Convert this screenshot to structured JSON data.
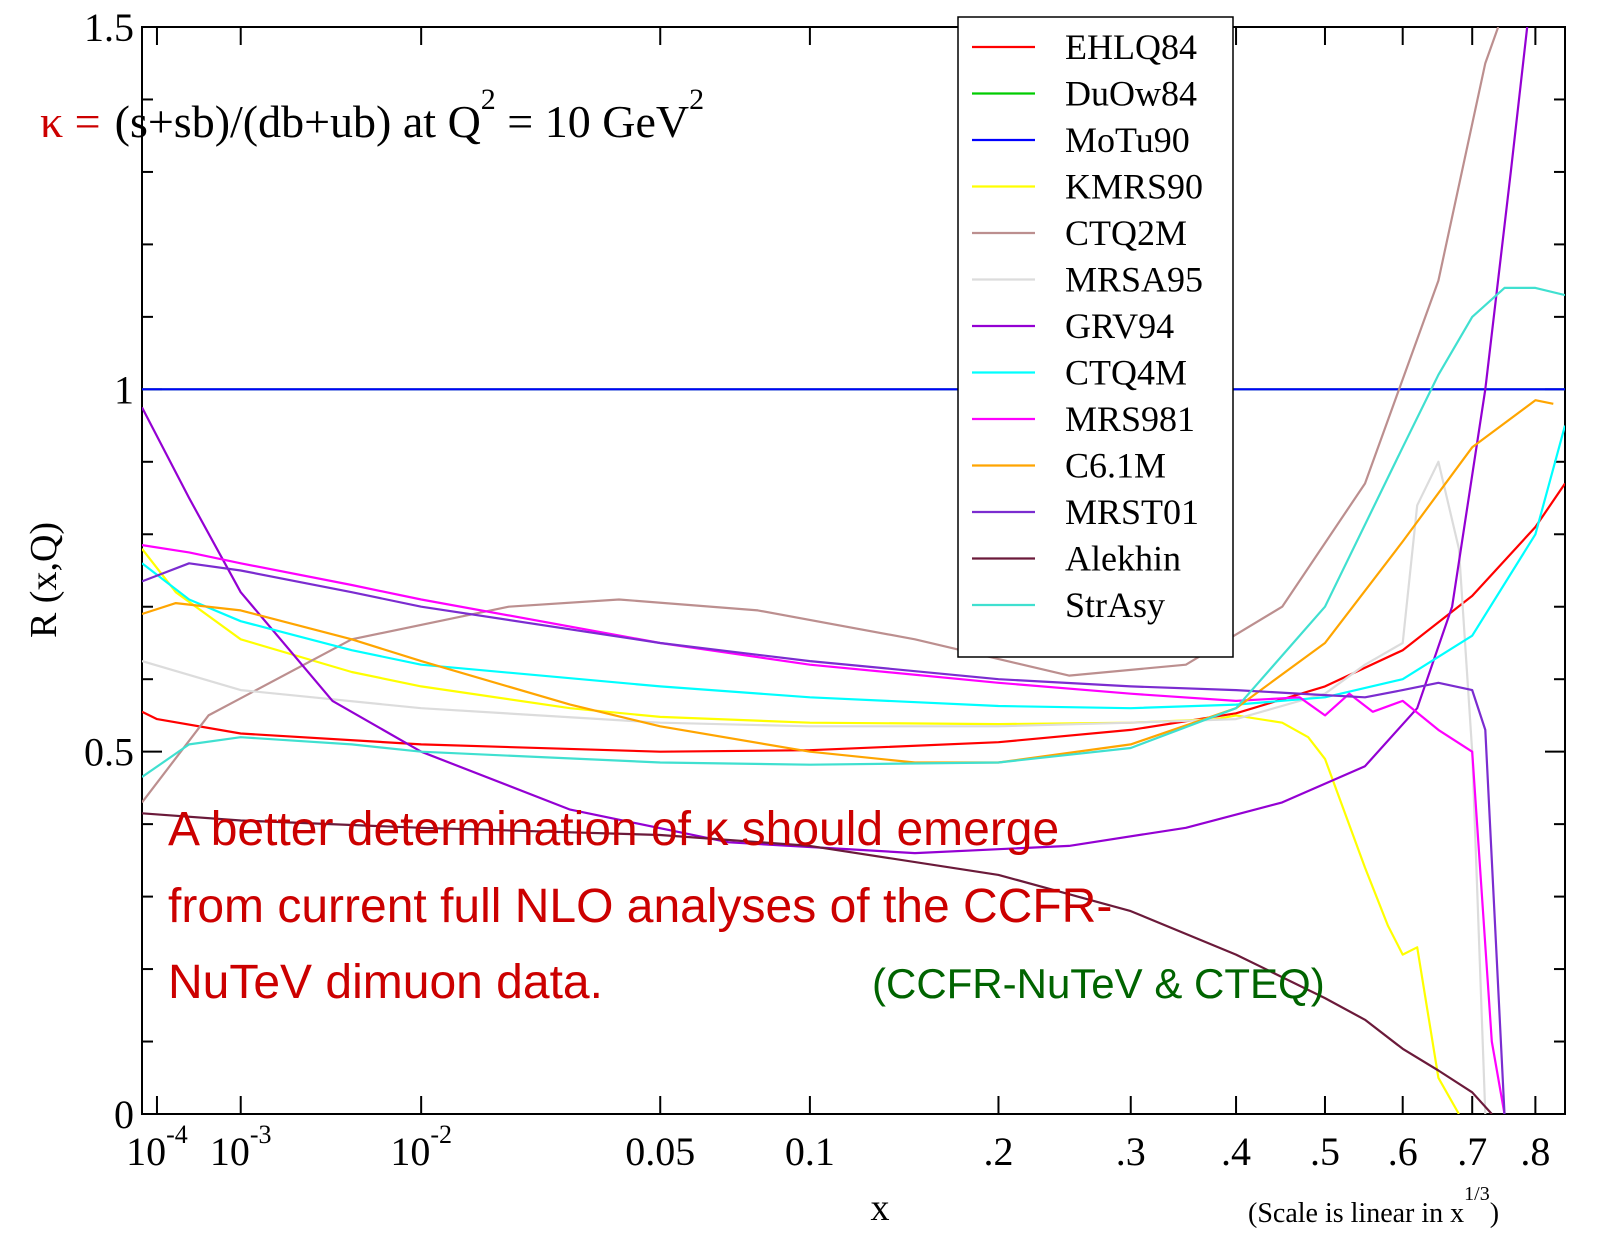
{
  "chart_data": {
    "type": "line",
    "ylabel": "R (x,Q)",
    "xlabel": "x",
    "scale_note_main": "(Scale is linear in x",
    "scale_note_exp": "1/3",
    "scale_note_close": ")",
    "xscale": "linear in x^(1/3)",
    "xlim": [
      5e-05,
      0.85
    ],
    "ylim": [
      0,
      1.5
    ],
    "grid": false,
    "legend_position": "top-right",
    "y_ticks": [
      {
        "value": 0,
        "label": "0"
      },
      {
        "value": 0.5,
        "label": "0.5"
      },
      {
        "value": 1,
        "label": "1"
      },
      {
        "value": 1.5,
        "label": "1.5"
      }
    ],
    "y_minor_step": 0.1,
    "x_ticks": [
      {
        "value": 0.0001,
        "base": "10",
        "exp": "-4"
      },
      {
        "value": 0.001,
        "base": "10",
        "exp": "-3"
      },
      {
        "value": 0.01,
        "base": "10",
        "exp": "-2"
      },
      {
        "value": 0.05,
        "label": "0.05"
      },
      {
        "value": 0.1,
        "label": "0.1"
      },
      {
        "value": 0.2,
        "label": ".2"
      },
      {
        "value": 0.3,
        "label": ".3"
      },
      {
        "value": 0.4,
        "label": ".4"
      },
      {
        "value": 0.5,
        "label": ".5"
      },
      {
        "value": 0.6,
        "label": ".6"
      },
      {
        "value": 0.7,
        "label": ".7"
      },
      {
        "value": 0.8,
        "label": ".8"
      }
    ],
    "title": {
      "kappa": "κ =",
      "main": "(s+sb)/(db+ub) at Q",
      "exp1": "2",
      "mid": " = 10 GeV",
      "exp2": "2"
    },
    "annotation_lines": [
      "A better determination of κ should emerge",
      "from current full NLO analyses of the CCFR-",
      "NuTeV dimuon data."
    ],
    "annotation_credit": "(CCFR-NuTeV & CTEQ)",
    "annotation_color": "#cc0000",
    "credit_color": "#006400",
    "series": [
      {
        "name": "EHLQ84",
        "color": "#ff0000",
        "x": [
          5e-05,
          0.0001,
          0.001,
          0.01,
          0.05,
          0.1,
          0.2,
          0.3,
          0.4,
          0.5,
          0.6,
          0.7,
          0.8,
          0.85
        ],
        "y": [
          0.555,
          0.545,
          0.525,
          0.51,
          0.5,
          0.502,
          0.513,
          0.53,
          0.553,
          0.59,
          0.64,
          0.715,
          0.81,
          0.87
        ]
      },
      {
        "name": "DuOw84",
        "color": "#00cc00",
        "x": [
          5e-05,
          0.85
        ],
        "y": [
          1.0,
          1.0
        ]
      },
      {
        "name": "MoTu90",
        "color": "#0000ff",
        "x": [
          5e-05,
          0.85
        ],
        "y": [
          1.0,
          1.0
        ]
      },
      {
        "name": "KMRS90",
        "color": "#ffff00",
        "x": [
          5e-05,
          0.0002,
          0.001,
          0.005,
          0.01,
          0.03,
          0.05,
          0.1,
          0.2,
          0.3,
          0.38,
          0.4,
          0.45,
          0.48,
          0.5,
          0.55,
          0.58,
          0.6,
          0.62,
          0.65,
          0.68
        ],
        "y": [
          0.78,
          0.72,
          0.655,
          0.61,
          0.59,
          0.56,
          0.548,
          0.54,
          0.538,
          0.54,
          0.545,
          0.55,
          0.54,
          0.52,
          0.49,
          0.34,
          0.26,
          0.22,
          0.23,
          0.05,
          0.0
        ]
      },
      {
        "name": "CTQ2M",
        "color": "#bc8f8f",
        "x": [
          5e-05,
          0.0005,
          0.005,
          0.02,
          0.04,
          0.08,
          0.15,
          0.25,
          0.35,
          0.45,
          0.55,
          0.65,
          0.72,
          0.74
        ],
        "y": [
          0.43,
          0.55,
          0.655,
          0.7,
          0.71,
          0.695,
          0.655,
          0.605,
          0.62,
          0.7,
          0.87,
          1.15,
          1.45,
          1.5
        ]
      },
      {
        "name": "MRSA95",
        "color": "#dcdcdc",
        "x": [
          5e-05,
          0.001,
          0.01,
          0.05,
          0.1,
          0.2,
          0.3,
          0.4,
          0.5,
          0.55,
          0.6,
          0.62,
          0.65,
          0.68,
          0.7,
          0.72
        ],
        "y": [
          0.625,
          0.585,
          0.56,
          0.54,
          0.535,
          0.535,
          0.54,
          0.545,
          0.58,
          0.62,
          0.65,
          0.84,
          0.9,
          0.78,
          0.5,
          0.0
        ]
      },
      {
        "name": "GRV94",
        "color": "#9400d3",
        "x": [
          5e-05,
          0.0003,
          0.001,
          0.004,
          0.01,
          0.03,
          0.07,
          0.15,
          0.25,
          0.35,
          0.45,
          0.55,
          0.62,
          0.67,
          0.72,
          0.76,
          0.8
        ],
        "y": [
          0.975,
          0.85,
          0.72,
          0.57,
          0.5,
          0.42,
          0.375,
          0.36,
          0.37,
          0.395,
          0.43,
          0.48,
          0.56,
          0.7,
          1.0,
          1.3,
          1.6
        ]
      },
      {
        "name": "CTQ4M",
        "color": "#00ffff",
        "x": [
          5e-05,
          0.0003,
          0.001,
          0.005,
          0.01,
          0.05,
          0.1,
          0.2,
          0.3,
          0.4,
          0.5,
          0.6,
          0.7,
          0.8,
          0.85
        ],
        "y": [
          0.76,
          0.71,
          0.68,
          0.64,
          0.62,
          0.59,
          0.575,
          0.563,
          0.56,
          0.565,
          0.575,
          0.6,
          0.66,
          0.8,
          0.95
        ]
      },
      {
        "name": "MRS981",
        "color": "#ff00ff",
        "x": [
          5e-05,
          0.0003,
          0.001,
          0.005,
          0.01,
          0.05,
          0.1,
          0.2,
          0.3,
          0.4,
          0.47,
          0.5,
          0.53,
          0.56,
          0.6,
          0.65,
          0.7,
          0.73,
          0.75
        ],
        "y": [
          0.785,
          0.775,
          0.76,
          0.73,
          0.71,
          0.65,
          0.62,
          0.595,
          0.58,
          0.57,
          0.575,
          0.55,
          0.58,
          0.555,
          0.57,
          0.53,
          0.5,
          0.1,
          0.0
        ]
      },
      {
        "name": "C6.1M",
        "color": "#ffa500",
        "x": [
          5e-05,
          0.0002,
          0.001,
          0.005,
          0.01,
          0.03,
          0.05,
          0.1,
          0.15,
          0.2,
          0.3,
          0.4,
          0.5,
          0.6,
          0.7,
          0.8,
          0.83
        ],
        "y": [
          0.69,
          0.705,
          0.695,
          0.655,
          0.625,
          0.565,
          0.535,
          0.5,
          0.485,
          0.485,
          0.51,
          0.56,
          0.65,
          0.79,
          0.92,
          0.985,
          0.98
        ]
      },
      {
        "name": "MRST01",
        "color": "#7b2cd0",
        "x": [
          5e-05,
          0.0003,
          0.001,
          0.005,
          0.01,
          0.05,
          0.1,
          0.2,
          0.3,
          0.4,
          0.5,
          0.55,
          0.6,
          0.65,
          0.7,
          0.72,
          0.75
        ],
        "y": [
          0.735,
          0.76,
          0.75,
          0.72,
          0.7,
          0.65,
          0.625,
          0.6,
          0.59,
          0.585,
          0.578,
          0.575,
          0.585,
          0.595,
          0.585,
          0.53,
          0.0
        ]
      },
      {
        "name": "Alekhin",
        "color": "#6b1a3a",
        "x": [
          5e-05,
          0.001,
          0.01,
          0.05,
          0.1,
          0.2,
          0.3,
          0.4,
          0.5,
          0.55,
          0.6,
          0.65,
          0.7,
          0.73
        ],
        "y": [
          0.415,
          0.405,
          0.395,
          0.385,
          0.37,
          0.33,
          0.28,
          0.22,
          0.16,
          0.13,
          0.09,
          0.06,
          0.03,
          0.0
        ]
      },
      {
        "name": "StrAsy",
        "color": "#40e0d0",
        "x": [
          5e-05,
          0.0003,
          0.001,
          0.005,
          0.01,
          0.05,
          0.1,
          0.2,
          0.3,
          0.4,
          0.5,
          0.6,
          0.65,
          0.7,
          0.75,
          0.8,
          0.85
        ],
        "y": [
          0.465,
          0.51,
          0.52,
          0.51,
          0.5,
          0.485,
          0.482,
          0.485,
          0.505,
          0.56,
          0.7,
          0.92,
          1.02,
          1.1,
          1.14,
          1.14,
          1.13
        ]
      }
    ]
  }
}
